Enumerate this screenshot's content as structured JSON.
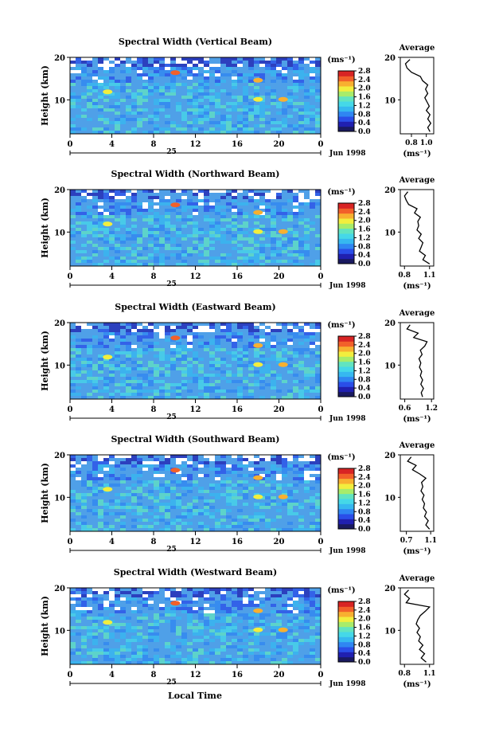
{
  "colors": {
    "colorbar": [
      "#1a1a60",
      "#2020b0",
      "#2a4ee8",
      "#2f86f2",
      "#36b8f0",
      "#45d8e8",
      "#62e4c0",
      "#a8ec6a",
      "#f2ee3e",
      "#f8b030",
      "#f2602a",
      "#d82424"
    ],
    "field_base": "#4fa0e8",
    "upper_layer": "#3552e0",
    "missing": "#ffffff"
  },
  "figure": {
    "xlabel": "Local Time",
    "date_label": "Jun 1998",
    "day_label": "25"
  },
  "chart_data": [
    {
      "type": "heatmap",
      "title": "Spectral Width (Vertical Beam)",
      "ylabel": "Height (km)",
      "x_ticks": [
        "0",
        "4",
        "8",
        "12",
        "16",
        "20",
        "0"
      ],
      "y_ticks": [
        "10",
        "20"
      ],
      "xlim": [
        0,
        24
      ],
      "ylim": [
        2,
        20
      ],
      "colorbar": {
        "unit": "(ms⁻¹)",
        "ticks": [
          "0.0",
          "0.4",
          "0.8",
          "1.2",
          "1.6",
          "2.0",
          "2.4",
          "2.8"
        ],
        "range": [
          0.0,
          2.8
        ]
      },
      "average": {
        "title": "Average",
        "xlabel": "(ms⁻¹)",
        "x_ticks": [
          "0.8",
          "1.0"
        ],
        "xlim": [
          0.65,
          1.1
        ],
        "y_ticks": [
          "10",
          "20"
        ],
        "height": [
          2.5,
          3.5,
          4.5,
          5.5,
          6.5,
          7.5,
          8.5,
          9.5,
          10.5,
          11.5,
          12.5,
          13.5,
          14.5,
          15.5,
          16.5,
          17.5,
          18.5,
          19.5
        ],
        "value": [
          1.05,
          1.02,
          1.06,
          1.02,
          1.05,
          1.0,
          1.04,
          1.01,
          0.98,
          1.02,
          0.99,
          1.02,
          0.95,
          0.92,
          0.8,
          0.74,
          0.72,
          0.78
        ]
      }
    },
    {
      "type": "heatmap",
      "title": "Spectral Width (Northward Beam)",
      "ylabel": "Height (km)",
      "x_ticks": [
        "0",
        "4",
        "8",
        "12",
        "16",
        "20",
        "0"
      ],
      "y_ticks": [
        "10",
        "20"
      ],
      "xlim": [
        0,
        24
      ],
      "ylim": [
        2,
        20
      ],
      "colorbar": {
        "unit": "(ms⁻¹)",
        "ticks": [
          "0.0",
          "0.4",
          "0.8",
          "1.2",
          "1.6",
          "2.0",
          "2.4",
          "2.8"
        ],
        "range": [
          0.0,
          2.8
        ]
      },
      "average": {
        "title": "Average",
        "xlabel": "(ms⁻¹)",
        "x_ticks": [
          "0.8",
          "1.1"
        ],
        "xlim": [
          0.75,
          1.15
        ],
        "y_ticks": [
          "10",
          "20"
        ],
        "height": [
          2.5,
          3.5,
          4.5,
          5.5,
          6.5,
          7.5,
          8.5,
          9.5,
          10.5,
          11.5,
          12.5,
          13.5,
          14.5,
          15.5,
          16.5,
          17.5,
          18.5,
          19.5
        ],
        "value": [
          1.1,
          1.02,
          1.05,
          0.98,
          1.0,
          1.02,
          0.97,
          1.0,
          0.95,
          0.97,
          0.96,
          0.99,
          0.92,
          0.95,
          0.85,
          0.82,
          0.8,
          0.84
        ]
      }
    },
    {
      "type": "heatmap",
      "title": "Spectral Width (Eastward Beam)",
      "ylabel": "Height (km)",
      "x_ticks": [
        "0",
        "4",
        "8",
        "12",
        "16",
        "20",
        "0"
      ],
      "y_ticks": [
        "10",
        "20"
      ],
      "xlim": [
        0,
        24
      ],
      "ylim": [
        2,
        20
      ],
      "colorbar": {
        "unit": "(ms⁻¹)",
        "ticks": [
          "0.0",
          "0.4",
          "0.8",
          "1.2",
          "1.6",
          "2.0",
          "2.4",
          "2.8"
        ],
        "range": [
          0.0,
          2.8
        ]
      },
      "average": {
        "title": "Average",
        "xlabel": "(ms⁻¹)",
        "x_ticks": [
          "0.6",
          "1.2"
        ],
        "xlim": [
          0.5,
          1.25
        ],
        "y_ticks": [
          "10",
          "20"
        ],
        "height": [
          2.5,
          3.5,
          4.5,
          5.5,
          6.5,
          7.5,
          8.5,
          9.5,
          10.5,
          11.5,
          12.5,
          13.5,
          14.5,
          15.5,
          16.5,
          17.5,
          18.5,
          19.5
        ],
        "value": [
          1.0,
          0.97,
          1.02,
          0.96,
          1.0,
          0.95,
          0.98,
          0.93,
          0.96,
          0.92,
          0.99,
          0.95,
          1.05,
          1.1,
          0.8,
          0.9,
          0.65,
          0.72
        ]
      }
    },
    {
      "type": "heatmap",
      "title": "Spectral Width (Southward Beam)",
      "ylabel": "Height (km)",
      "x_ticks": [
        "0",
        "4",
        "8",
        "12",
        "16",
        "20",
        "0"
      ],
      "y_ticks": [
        "10",
        "20"
      ],
      "xlim": [
        0,
        24
      ],
      "ylim": [
        2,
        20
      ],
      "colorbar": {
        "unit": "(ms⁻¹)",
        "ticks": [
          "0.0",
          "0.4",
          "0.8",
          "1.2",
          "1.6",
          "2.0",
          "2.4",
          "2.8"
        ],
        "range": [
          0.0,
          2.8
        ]
      },
      "average": {
        "title": "Average",
        "xlabel": "(ms⁻¹)",
        "x_ticks": [
          "0.7",
          "1.1"
        ],
        "xlim": [
          0.6,
          1.15
        ],
        "y_ticks": [
          "10",
          "20"
        ],
        "height": [
          2.5,
          3.5,
          4.5,
          5.5,
          6.5,
          7.5,
          8.5,
          9.5,
          10.5,
          11.5,
          12.5,
          13.5,
          14.5,
          15.5,
          16.5,
          17.5,
          18.5,
          19.5
        ],
        "value": [
          1.08,
          1.02,
          1.06,
          1.0,
          1.03,
          0.98,
          1.0,
          0.96,
          0.99,
          0.94,
          0.97,
          0.95,
          1.02,
          0.92,
          0.8,
          0.86,
          0.72,
          0.78
        ]
      }
    },
    {
      "type": "heatmap",
      "title": "Spectral Width (Westward Beam)",
      "ylabel": "Height (km)",
      "x_ticks": [
        "0",
        "4",
        "8",
        "12",
        "16",
        "20",
        "0"
      ],
      "y_ticks": [
        "10",
        "20"
      ],
      "xlim": [
        0,
        24
      ],
      "ylim": [
        2,
        20
      ],
      "colorbar": {
        "unit": "(ms⁻¹)",
        "ticks": [
          "0.0",
          "0.4",
          "0.8",
          "1.2",
          "1.6",
          "2.0",
          "2.4",
          "2.8"
        ],
        "range": [
          0.0,
          2.8
        ]
      },
      "average": {
        "title": "Average",
        "xlabel": "(ms⁻¹)",
        "x_ticks": [
          "0.8",
          "1.1"
        ],
        "xlim": [
          0.75,
          1.15
        ],
        "y_ticks": [
          "10",
          "20"
        ],
        "height": [
          2.5,
          3.5,
          4.5,
          5.5,
          6.5,
          7.5,
          8.5,
          9.5,
          10.5,
          11.5,
          12.5,
          13.5,
          14.5,
          15.5,
          16.5,
          17.5,
          18.5,
          19.5
        ],
        "value": [
          1.06,
          1.0,
          1.04,
          0.98,
          1.02,
          0.97,
          0.99,
          0.95,
          0.98,
          0.94,
          0.96,
          0.99,
          1.05,
          1.1,
          0.82,
          0.86,
          0.8,
          0.85
        ]
      }
    }
  ]
}
